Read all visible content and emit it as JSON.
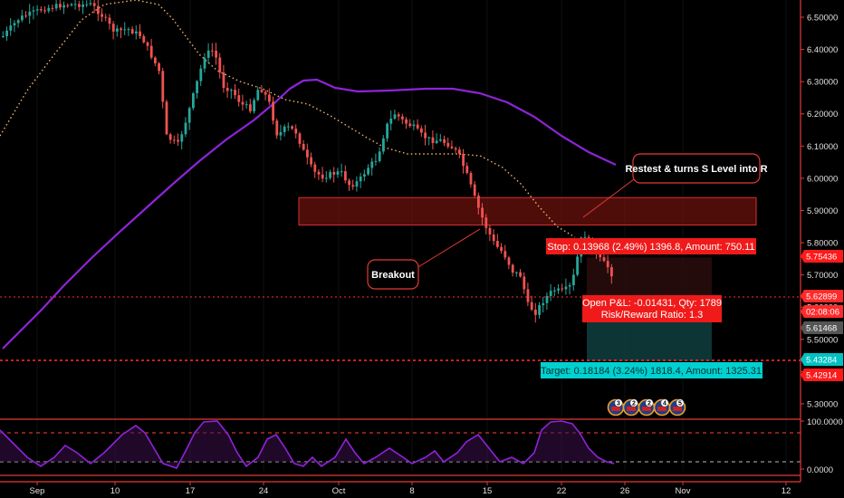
{
  "chart_data": {
    "type": "candlestick",
    "price_axis": {
      "ticks": [
        "6.50000",
        "6.40000",
        "6.30000",
        "6.20000",
        "6.10000",
        "6.00000",
        "5.90000",
        "5.80000",
        "5.70000",
        "5.60000",
        "5.50000",
        "5.40000",
        "5.30000"
      ],
      "ylim": [
        5.25,
        6.56
      ]
    },
    "indicator_axis": {
      "ticks": [
        "100.0000",
        "0.0000"
      ]
    },
    "time_axis": {
      "ticks": [
        "Sep",
        "10",
        "17",
        "24",
        "Oct",
        "8",
        "15",
        "22",
        "26",
        "Nov",
        "12"
      ]
    },
    "price_tags": [
      {
        "text": "5.75436",
        "color": "#ff1a1a"
      },
      {
        "text": "5.62899",
        "color": "#ff2a2a"
      },
      {
        "text": "02:08:06",
        "color": "#ff2a2a"
      },
      {
        "text": "5.61468",
        "color": "#555555"
      },
      {
        "text": "5.43284",
        "color": "#00c2c2"
      },
      {
        "text": "5.42914",
        "color": "#ff1a1a"
      }
    ],
    "position": {
      "stop_label": "Stop: 0.13968 (2.49%) 1396.8, Amount: 750.11",
      "pnl_label_1": "Open P&L: -0.01431, Qty: 1789",
      "pnl_label_2": "Risk/Reward Ratio: 1.3",
      "target_label": "Target: 0.18184 (3.24%) 1818.4, Amount: 1325.31",
      "stop_price": 5.75436,
      "entry_price": 5.61468,
      "target_price": 5.43284
    },
    "resistance_zone": [
      5.855,
      5.94
    ],
    "annotations": [
      {
        "text": "Restest & turns S Level into R"
      },
      {
        "text": "Breakout"
      }
    ],
    "event_icons": [
      "3",
      "2",
      "2",
      "4",
      "5"
    ],
    "colors": {
      "up": "#26a69a",
      "down": "#ef5350",
      "ma_slow": "#8e24d8",
      "ma_fast": "#f2b46e",
      "zone": "#7a1410",
      "target_zone": "#0f3b3b",
      "oscillator": "#8e24d8"
    }
  }
}
